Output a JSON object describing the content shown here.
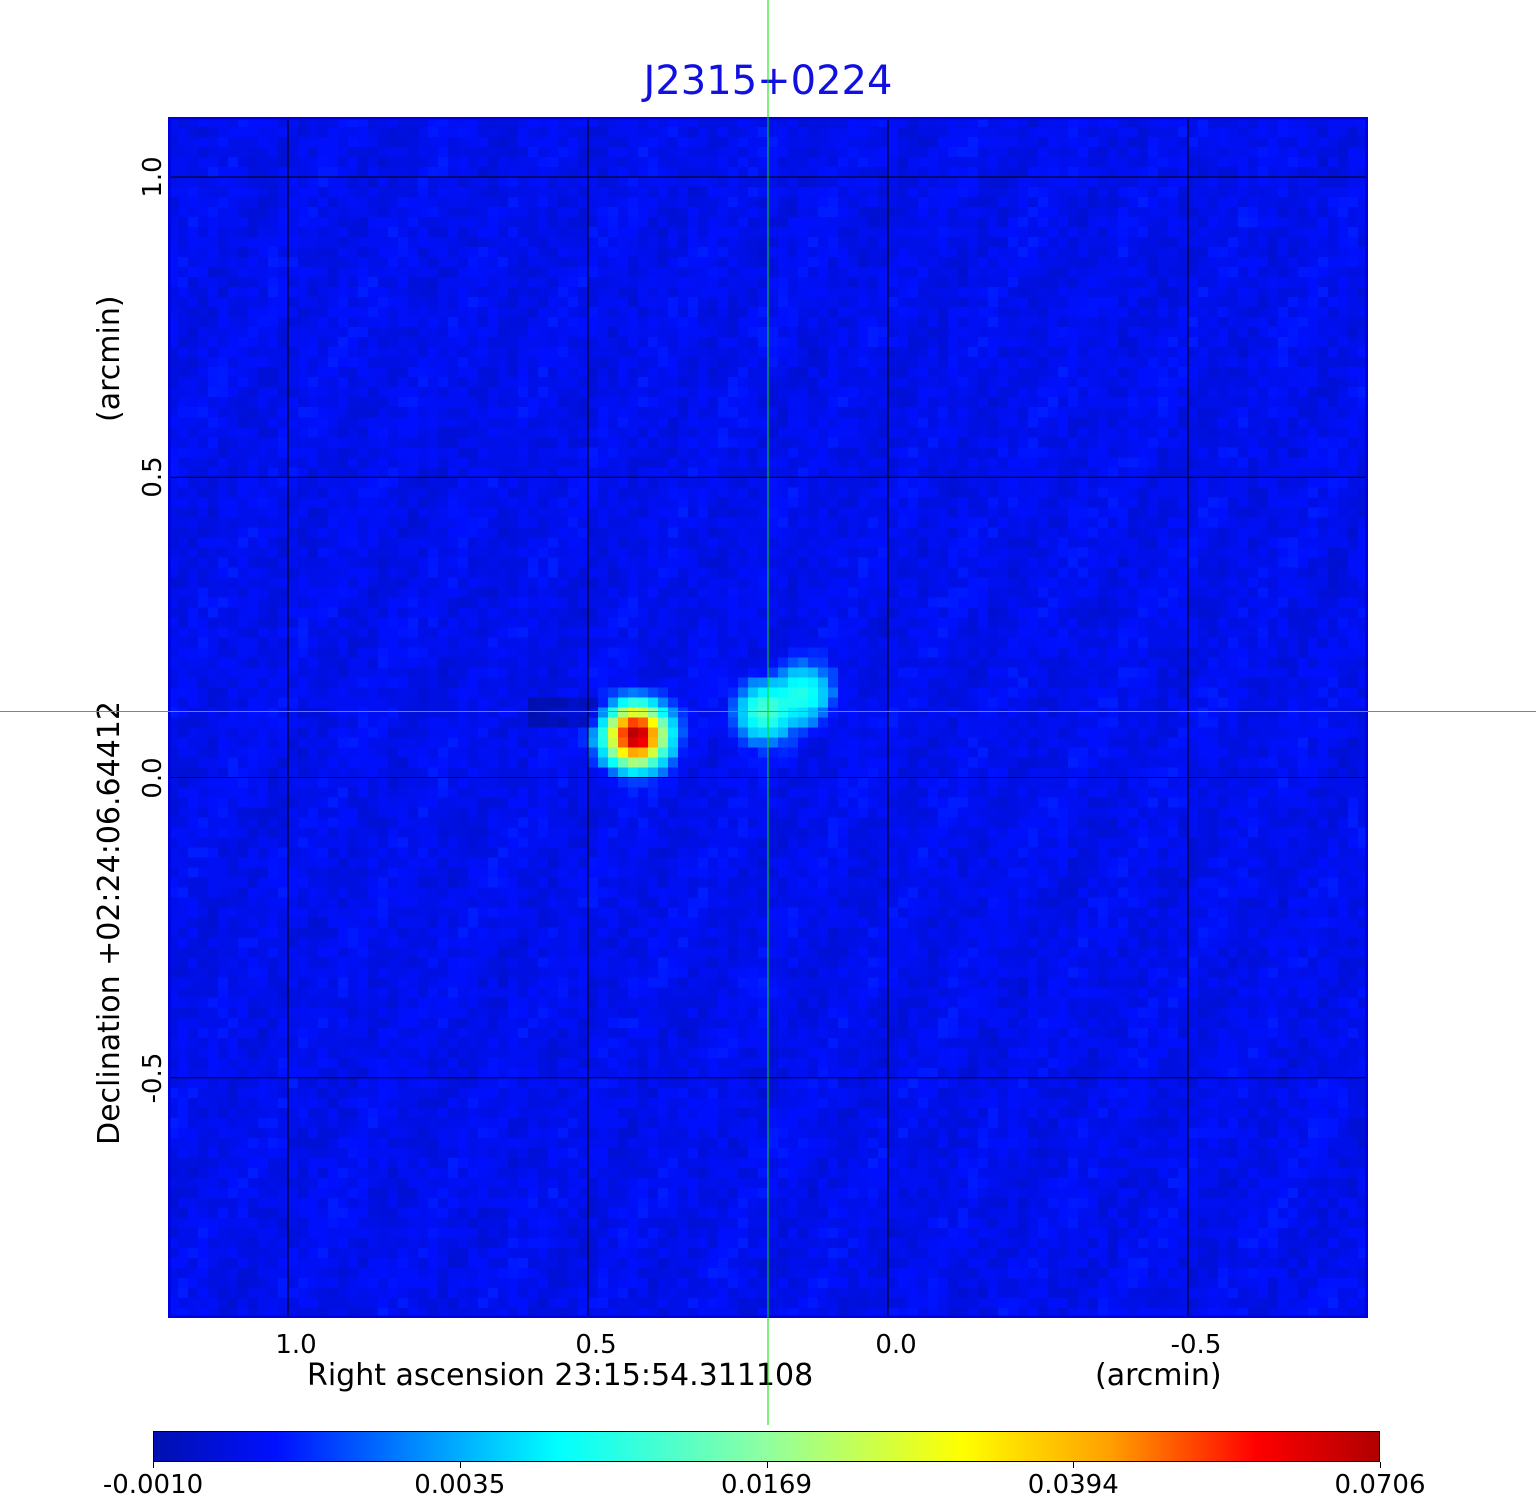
{
  "chart_data": {
    "type": "heatmap",
    "title": "J2315+0224",
    "xlabel": "Right ascension  23:15:54.311108",
    "xunit": "(arcmin)",
    "ylabel": "Declination  +02:24:06.64412",
    "yunit": "(arcmin)",
    "xlim": [
      1.2,
      -0.8
    ],
    "ylim": [
      -0.9,
      1.1
    ],
    "x_ticks": [
      "1.0",
      "0.5",
      "0.0",
      "-0.5"
    ],
    "x_tick_values": [
      1.0,
      0.5,
      0.0,
      -0.5
    ],
    "y_ticks": [
      "1.0",
      "0.5",
      "0.0",
      "-0.5"
    ],
    "y_tick_values": [
      1.0,
      0.5,
      0.0,
      -0.5
    ],
    "grid": true,
    "crosshair": {
      "x": 0.2,
      "y": 0.11,
      "color": "#00e000"
    },
    "colormap": "jet",
    "colorbar": {
      "ticks": [
        "-0.0010",
        "0.0035",
        "0.0169",
        "0.0394",
        "0.0706"
      ],
      "tick_values": [
        -0.001,
        0.0035,
        0.0169,
        0.0394,
        0.0706
      ],
      "placement": "bottom"
    },
    "background_level": 0.0004,
    "sources": [
      {
        "x": 0.42,
        "y": 0.07,
        "peak": 0.0706
      },
      {
        "x": 0.205,
        "y": 0.11,
        "peak": 0.012
      },
      {
        "x": 0.14,
        "y": 0.14,
        "peak": 0.009
      }
    ],
    "title_color": "#1010e0"
  }
}
